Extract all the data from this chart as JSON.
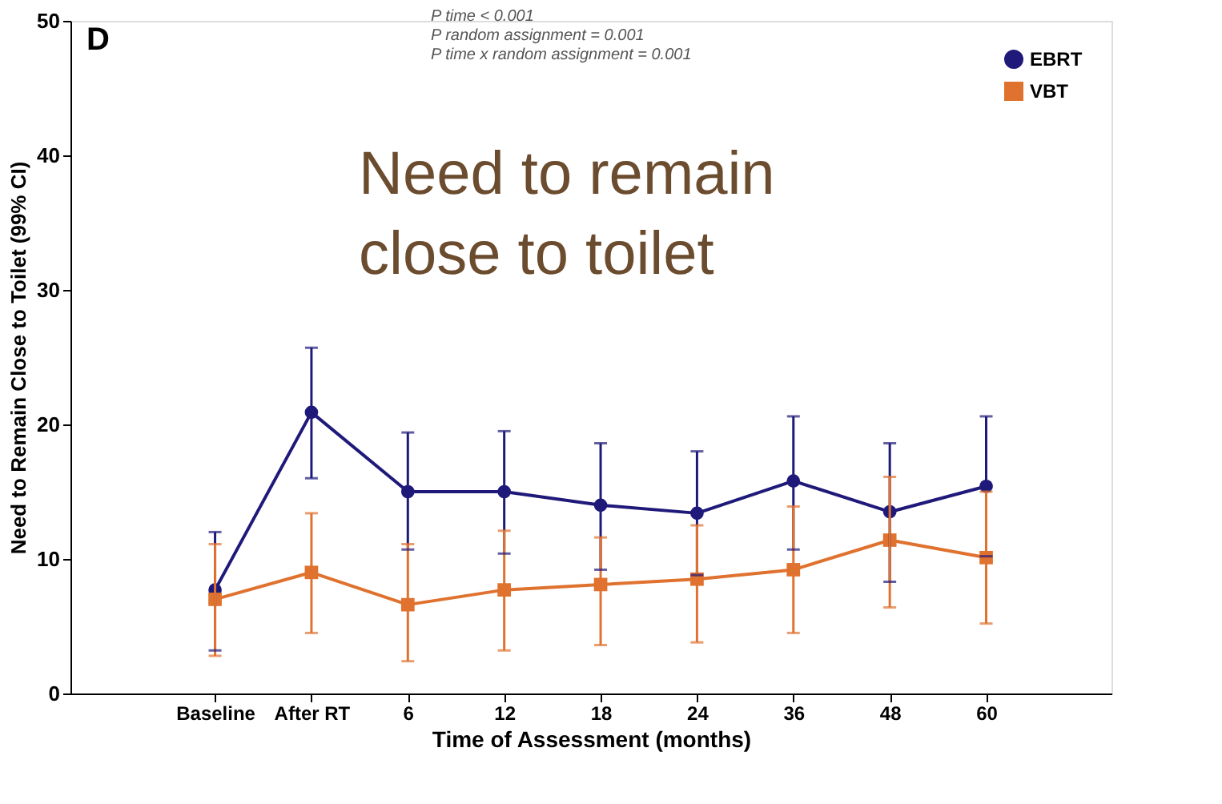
{
  "chart_data": {
    "type": "line",
    "xlabel": "Time of Assessment (months)",
    "ylabel": "Need to Remain Close to Toilet (99% CI)",
    "categories": [
      "Baseline",
      "After RT",
      "6",
      "12",
      "18",
      "24",
      "36",
      "48",
      "60"
    ],
    "series": [
      {
        "name": "EBRT",
        "color": "#1f1a7a",
        "marker": "circle",
        "values": [
          7.7,
          20.9,
          15.0,
          15.0,
          14.0,
          13.4,
          15.8,
          13.5,
          15.4
        ],
        "errors": [
          [
            3.2,
            12.0
          ],
          [
            16.0,
            25.7
          ],
          [
            10.7,
            19.4
          ],
          [
            10.4,
            19.5
          ],
          [
            9.2,
            18.6
          ],
          [
            8.8,
            18.0
          ],
          [
            10.7,
            20.6
          ],
          [
            8.3,
            18.6
          ],
          [
            10.2,
            20.6
          ]
        ]
      },
      {
        "name": "VBT",
        "color": "#e0722f",
        "marker": "square",
        "values": [
          7.0,
          9.0,
          6.6,
          7.7,
          8.1,
          8.5,
          9.2,
          11.4,
          10.1
        ],
        "errors": [
          [
            2.8,
            11.1
          ],
          [
            4.5,
            13.4
          ],
          [
            2.4,
            11.1
          ],
          [
            3.2,
            12.1
          ],
          [
            3.6,
            11.6
          ],
          [
            3.8,
            12.5
          ],
          [
            4.5,
            13.9
          ],
          [
            6.4,
            16.1
          ],
          [
            5.2,
            15.0
          ]
        ]
      }
    ],
    "ylim": [
      0,
      50
    ],
    "yticks": [
      0,
      10,
      20,
      30,
      40,
      50
    ],
    "grid": false,
    "legend": "top right",
    "annotations": [
      "D",
      "P time < 0.001",
      "P random assignment = 0.001",
      "P time x random assignment = 0.001",
      "Need to remain close to toilet"
    ]
  }
}
